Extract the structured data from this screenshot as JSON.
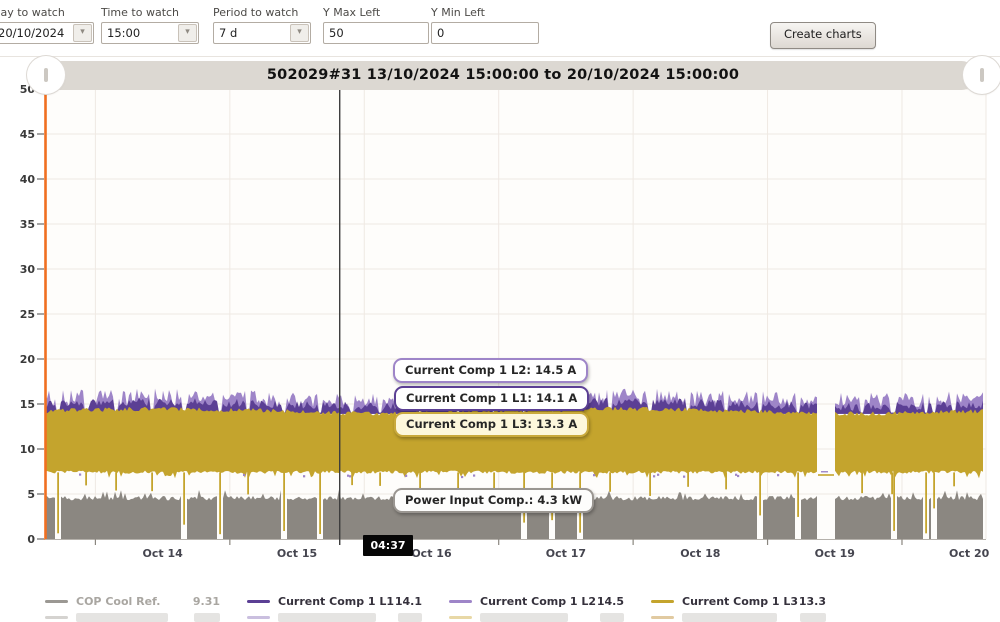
{
  "controls": {
    "fields": [
      {
        "label": "Day to watch",
        "value": "20/10/2024",
        "type": "select"
      },
      {
        "label": "Time to watch",
        "value": "15:00",
        "type": "select"
      },
      {
        "label": "Period to watch",
        "value": "7 d",
        "type": "select"
      },
      {
        "label": "Y Max Left",
        "value": "50",
        "type": "input"
      },
      {
        "label": "Y Min Left",
        "value": "0",
        "type": "input"
      }
    ],
    "create_button_label": "Create charts"
  },
  "chart_data": {
    "type": "line",
    "title": "502029#31 13/10/2024 15:00:00 to 20/10/2024 15:00:00",
    "x_start": "13/10/2024 15:00:00",
    "x_end": "20/10/2024 15:00:00",
    "x_tick_labels": [
      "Oct 14",
      "Oct 15",
      "Oct 16",
      "Oct 17",
      "Oct 18",
      "Oct 19",
      "Oct 20"
    ],
    "ylim": [
      0,
      50
    ],
    "y_tick_step": 5,
    "grid": true,
    "legend_position": "bottom",
    "y_axis_color": "#f06f21",
    "series": [
      {
        "name": "COP Cool Ref.",
        "color": "#9b9893",
        "legend_value": "9.31",
        "note": "hidden under other series"
      },
      {
        "name": "Current Comp 1 L1",
        "color": "#5b3f94",
        "legend_value": "14.1",
        "band": [
          13.9,
          15.5
        ]
      },
      {
        "name": "Current Comp 1 L2",
        "color": "#9e85c8",
        "legend_value": "14.5",
        "band": [
          13.9,
          16.6
        ]
      },
      {
        "name": "Current Comp 1 L3",
        "color": "#c4a42d",
        "legend_value": "13.3",
        "band": [
          7.3,
          14.4
        ]
      },
      {
        "name": "Power Input Comp.",
        "color": "#8b8781",
        "cursor_value": "4.3 kW",
        "band": [
          0,
          4.8
        ]
      }
    ],
    "cursor": {
      "time_label": "04:37",
      "position": "Oct 16 04:37"
    },
    "data_gap": {
      "approx_x_day": "Oct 19 morning"
    }
  },
  "tooltips": [
    {
      "text": "Current Comp 1 L2: 14.5 A",
      "border": "#9e85c8",
      "bg": "#ffffff"
    },
    {
      "text": "Current Comp 1 L1: 14.1 A",
      "border": "#5b3f94",
      "bg": "#ffffff"
    },
    {
      "text": "Current Comp 1 L3: 13.3 A",
      "border": "#c9a93c",
      "bg": "#fdf7dc"
    },
    {
      "text": "Power Input Comp.: 4.3 kW",
      "border": "#9a9691",
      "bg": "#fdfdfc"
    }
  ],
  "legend": {
    "items": [
      {
        "label": "COP Cool Ref.",
        "value": "9.31",
        "color": "#9b9893",
        "muted": true
      },
      {
        "label": "Current Comp 1 L1",
        "value": "14.1",
        "color": "#5b3f94",
        "muted": false
      },
      {
        "label": "Current Comp 1 L2",
        "value": "14.5",
        "color": "#9e85c8",
        "muted": false
      },
      {
        "label": "Current Comp 1 L3",
        "value": "13.3",
        "color": "#c4a42d",
        "muted": false
      }
    ],
    "second_row_partially_visible": true
  }
}
